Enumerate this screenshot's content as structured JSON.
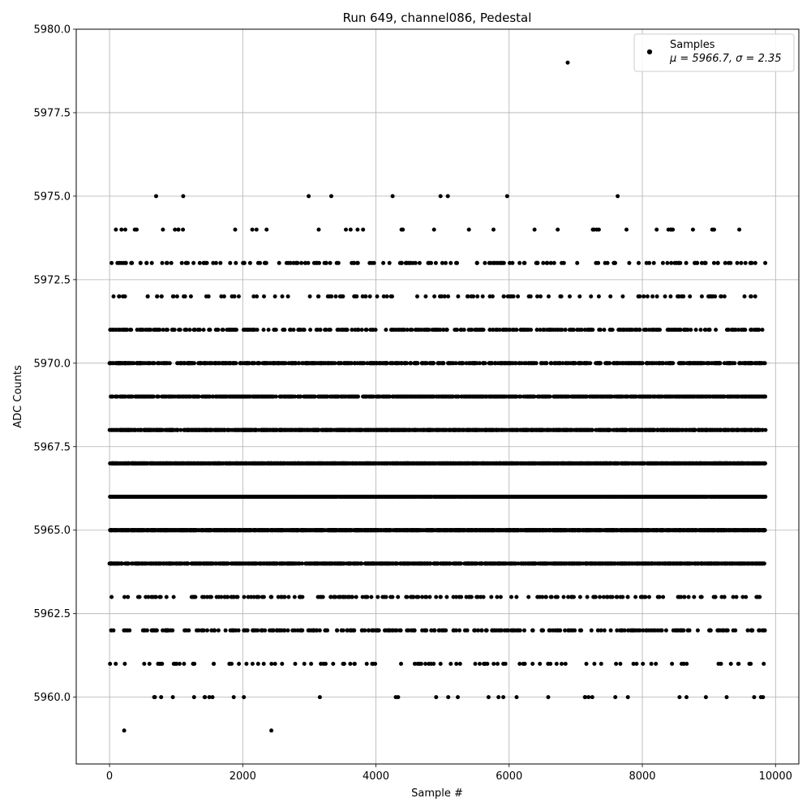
{
  "chart_data": {
    "type": "scatter",
    "title": "Run 649, channel086, Pedestal",
    "xlabel": "Sample #",
    "ylabel": "ADC Counts",
    "xlim": [
      -500,
      10350
    ],
    "ylim": [
      5958,
      5980
    ],
    "xticks": [
      0,
      2000,
      4000,
      6000,
      8000,
      10000
    ],
    "xtick_labels": [
      "0",
      "2000",
      "4000",
      "6000",
      "8000",
      "10000"
    ],
    "yticks": [
      5960.0,
      5962.5,
      5965.0,
      5967.5,
      5970.0,
      5972.5,
      5975.0,
      5977.5,
      5980.0
    ],
    "ytick_labels": [
      "5960.0",
      "5962.5",
      "5965.0",
      "5967.5",
      "5970.0",
      "5972.5",
      "5975.0",
      "5977.5",
      "5980.0"
    ],
    "grid": true,
    "legend": {
      "position": "top-right",
      "label": "Samples",
      "stats": "μ = 5966.7, σ = 2.35"
    },
    "marker_color": "#000000",
    "series": [
      {
        "name": "Samples",
        "x_range": [
          0,
          9850
        ],
        "counts_per_level": {
          "5959": 2,
          "5960": 35,
          "5961": 100,
          "5962": 280,
          "5963": 200,
          "5964": 1250,
          "5965": 2100,
          "5966": 2200,
          "5967": 1750,
          "5968": 1250,
          "5969": 900,
          "5970": 650,
          "5971": 380,
          "5972": 120,
          "5973": 170,
          "5974": 40,
          "5975": 9,
          "5979": 1
        },
        "singleton_points": [
          [
            220,
            5959
          ],
          [
            2430,
            5959
          ],
          [
            6880,
            5979
          ],
          [
            700,
            5975
          ],
          [
            2990,
            5975
          ],
          [
            3330,
            5975
          ],
          [
            4250,
            5975
          ],
          [
            4970,
            5975
          ],
          [
            5080,
            5975
          ],
          [
            5970,
            5975
          ],
          [
            7630,
            5975
          ]
        ]
      }
    ]
  }
}
